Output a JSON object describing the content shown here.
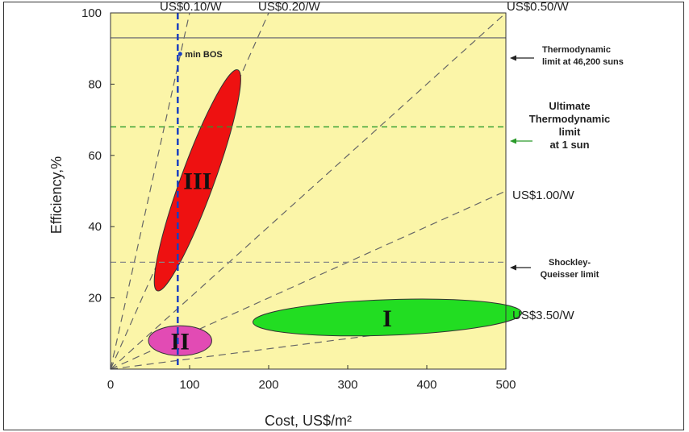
{
  "chart_data": {
    "type": "scatter",
    "xlabel": "Cost, US$/m²",
    "ylabel": "Efficiency,%",
    "xlim": [
      0,
      500
    ],
    "ylim": [
      0,
      100
    ],
    "x_ticks": [
      0,
      100,
      200,
      300,
      400,
      500
    ],
    "y_ticks": [
      20,
      40,
      60,
      80,
      100
    ],
    "background": "#fbf5a8",
    "cost_lines": [
      {
        "label": "US$0.10/W",
        "slope": 1.0
      },
      {
        "label": "US$0.20/W",
        "slope": 0.5
      },
      {
        "label": "US$0.50/W",
        "slope": 0.2
      },
      {
        "label": "US$1.00/W",
        "slope": 0.1
      },
      {
        "label": "US$3.50/W",
        "slope": 0.0286
      }
    ],
    "horizontal_limits": [
      {
        "label": "Thermodynamic limit at 46,200 suns",
        "lines": [
          "Thermodynamic",
          "limit at 46,200 suns"
        ],
        "y": 93,
        "color": "#777777",
        "style": "solid"
      },
      {
        "label": "Ultimate Thermodynamic limit at 1 sun",
        "lines": [
          "Ultimate",
          "Thermodynamic",
          "limit",
          "at 1 sun"
        ],
        "y": 68,
        "color": "#2a9a2a",
        "style": "dashed"
      },
      {
        "label": "Shockley-Queisser limit",
        "lines": [
          "Shockley-",
          "Queisser limit"
        ],
        "y": 30,
        "color": "#888888",
        "style": "dashed"
      }
    ],
    "min_bos": {
      "label": "min BOS",
      "x": 85,
      "color": "#1a3fc0"
    },
    "regions": [
      {
        "name": "I",
        "color": "#22dd22",
        "cx": 350,
        "cy": 14.5,
        "rx": 170,
        "ry": 5,
        "angle": -2
      },
      {
        "name": "II",
        "color": "#e24bb4",
        "cx": 88,
        "cy": 8,
        "rx": 40,
        "ry": 4.2,
        "angle": 0
      },
      {
        "name": "III",
        "color": "#ee1111",
        "cx": 110,
        "cy": 53,
        "rx": 21,
        "ry": 33,
        "angle": 20
      }
    ]
  }
}
